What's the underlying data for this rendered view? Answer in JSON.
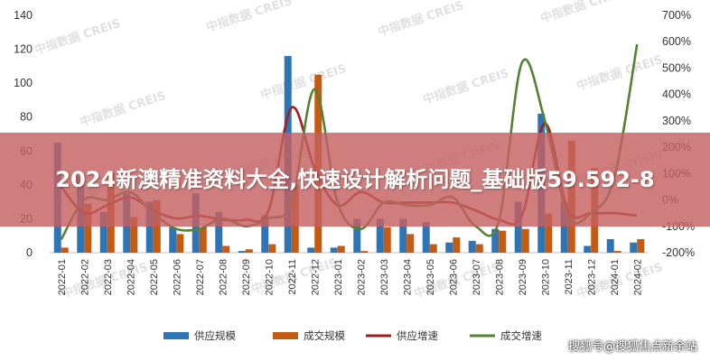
{
  "banner": {
    "headline": "2024新澳精准资料大全,快速设计解析问题_基础版59.592-8"
  },
  "watermark": {
    "text": "中指数据 CREIS"
  },
  "source_credit": {
    "text": "搜狐号@搜狐焦点新余站"
  },
  "colors": {
    "supply_bar": "#2e75b6",
    "deal_bar": "#c55a11",
    "supply_line": "#a61c1c",
    "deal_line": "#548235"
  },
  "chart_data": {
    "type": "bar",
    "categories": [
      "2022-01",
      "2022-02",
      "2022-03",
      "2022-04",
      "2022-05",
      "2022-06",
      "2022-07",
      "2022-08",
      "2022-09",
      "2022-10",
      "2022-11",
      "2022-12",
      "2023-01",
      "2023-02",
      "2023-03",
      "2023-04",
      "2023-05",
      "2023-06",
      "2023-07",
      "2023-08",
      "2023-09",
      "2023-10",
      "2023-11",
      "2023-12",
      "2024-01",
      "2024-02"
    ],
    "y_left": {
      "ylim": [
        0,
        140
      ],
      "ticks": [
        0,
        20,
        40,
        60,
        80,
        100,
        120,
        140
      ]
    },
    "y_right": {
      "ylim": [
        -200,
        700
      ],
      "ticks": [
        "-200%",
        "-100%",
        "0%",
        "100%",
        "200%",
        "300%",
        "400%",
        "500%",
        "600%",
        "700%"
      ],
      "tick_values": [
        -200,
        -100,
        0,
        100,
        200,
        300,
        400,
        500,
        600,
        700
      ]
    },
    "grid": false,
    "legend_position": "bottom",
    "series": [
      {
        "name": "供应规模",
        "kind": "bar",
        "axis": "left",
        "values": [
          65,
          45,
          24,
          35,
          30,
          15,
          35,
          24,
          1,
          22,
          116,
          3,
          3,
          20,
          20,
          20,
          18,
          6,
          7,
          14,
          30,
          82,
          30,
          4,
          8,
          6
        ]
      },
      {
        "name": "成交规模",
        "kind": "bar",
        "axis": "left",
        "values": [
          3,
          29,
          47,
          21,
          31,
          11,
          15,
          4,
          2,
          5,
          40,
          105,
          4,
          1,
          15,
          11,
          5,
          9,
          5,
          13,
          14,
          23,
          66,
          50,
          1,
          8
        ]
      },
      {
        "name": "供应增速",
        "kind": "line",
        "axis": "right",
        "values": [
          50,
          -50,
          -20,
          10,
          -40,
          -70,
          -60,
          -75,
          -75,
          -40,
          350,
          120,
          -20,
          30,
          -10,
          -10,
          -10,
          -10,
          -40,
          -75,
          -60,
          290,
          -40,
          -50,
          -50,
          -60
        ]
      },
      {
        "name": "成交增速",
        "kind": "line",
        "axis": "right",
        "values": [
          -150,
          0,
          0,
          30,
          -50,
          -110,
          -110,
          -70,
          -100,
          -70,
          -10,
          420,
          -10,
          -110,
          -10,
          -20,
          -20,
          10,
          -100,
          -80,
          520,
          300,
          -60,
          -50,
          80,
          590
        ]
      }
    ]
  }
}
